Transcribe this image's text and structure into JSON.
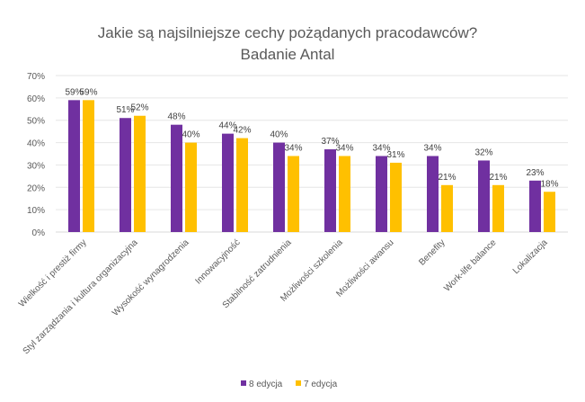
{
  "chart_data": {
    "type": "bar",
    "title": [
      "Jakie są najsilniejsze cechy pożądanych pracodawców?",
      "Badanie Antal"
    ],
    "categories": [
      "Wielkość i prestiż firmy",
      "Styl zarządzania i kultura organizacyjna",
      "Wysokość wynagrodzenia",
      "Innowacyjność",
      "Stabilność zatrudnienia",
      "Możliwości szkolenia",
      "Możliwości awansu",
      "Benefity",
      "Work-life balance",
      "Lokalizacja"
    ],
    "series": [
      {
        "name": "8 edycja",
        "color": "#7030A0",
        "values": [
          59,
          51,
          48,
          44,
          40,
          37,
          34,
          34,
          32,
          23
        ]
      },
      {
        "name": "7 edycja",
        "color": "#FFC000",
        "values": [
          59,
          52,
          40,
          42,
          34,
          34,
          31,
          21,
          21,
          18
        ]
      }
    ],
    "ylim": [
      0,
      70
    ],
    "yticks": [
      "0%",
      "10%",
      "20%",
      "30%",
      "40%",
      "50%",
      "60%",
      "70%"
    ],
    "value_suffix": "%",
    "grid": true,
    "legend": "bottom"
  }
}
